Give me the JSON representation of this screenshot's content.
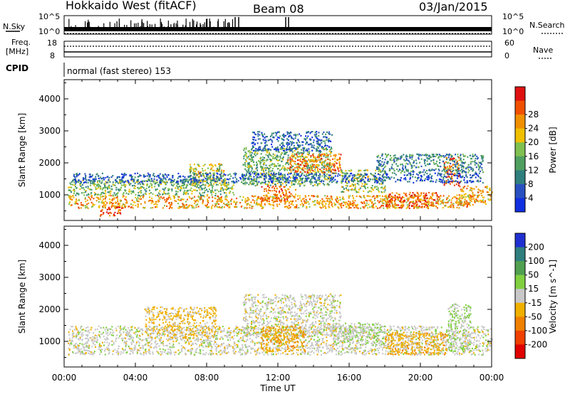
{
  "header": {
    "title": "Hokkaido West (fitACF)",
    "beam": "Beam 08",
    "date": "03/Jan/2015"
  },
  "top_panels": {
    "nsky_label": "N.Sky",
    "nsky_ticks": [
      "10^5",
      "10^0"
    ],
    "nsearch_label": "N.Search",
    "nsearch_ticks": [
      "10^5",
      "10^0"
    ],
    "freq_label_1": "Freq.",
    "freq_label_2": "[MHz]",
    "freq_ticks": [
      "18",
      "8"
    ],
    "nave_label": "Nave",
    "nave_ticks": [
      "60",
      "0"
    ],
    "cpid_label": "CPID",
    "cpid_text": "normal (fast stereo) 153"
  },
  "colors": {
    "power_scale": [
      "#1030e0",
      "#2850c0",
      "#2f7f7f",
      "#4fa060",
      "#80c050",
      "#f0c000",
      "#f09000",
      "#f05000",
      "#e01010"
    ],
    "velocity_scale": [
      "#2030d0",
      "#2f7f7f",
      "#50a050",
      "#80d040",
      "#c8c8c8",
      "#f0b000",
      "#f08000",
      "#f04000",
      "#e00000"
    ]
  },
  "chart_data": [
    {
      "type": "heatmap",
      "title": "",
      "xlabel": "Time UT",
      "ylabel": "Slant Range [km]",
      "x_ticks": [
        "00:00",
        "04:00",
        "08:00",
        "12:00",
        "16:00",
        "20:00",
        "00:00"
      ],
      "y_ticks": [
        1000,
        2000,
        3000,
        4000
      ],
      "ylim": [
        200,
        4600
      ],
      "colorbar_label": "Power [dB]",
      "colorbar_ticks": [
        "4",
        "8",
        "12",
        "16",
        "20",
        "24",
        "28"
      ],
      "bands": [
        {
          "t0": 0.2,
          "t1": 22.8,
          "r0": 600,
          "r1": 1000,
          "value": 22
        },
        {
          "t0": 0.2,
          "t1": 9.5,
          "r0": 1000,
          "r1": 1500,
          "value": 14
        },
        {
          "t0": 2.0,
          "t1": 3.2,
          "r0": 350,
          "r1": 650,
          "value": 28
        },
        {
          "t0": 7.0,
          "t1": 9.0,
          "r0": 1300,
          "r1": 2000,
          "value": 18
        },
        {
          "t0": 10.0,
          "t1": 15.0,
          "r0": 1300,
          "r1": 2500,
          "value": 14
        },
        {
          "t0": 11.0,
          "t1": 13.0,
          "r0": 800,
          "r1": 1300,
          "value": 24
        },
        {
          "t0": 12.5,
          "t1": 15.5,
          "r0": 1700,
          "r1": 2300,
          "value": 24
        },
        {
          "t0": 15.5,
          "t1": 18.0,
          "r0": 1100,
          "r1": 1800,
          "value": 16
        },
        {
          "t0": 18.0,
          "t1": 21.0,
          "r0": 600,
          "r1": 1100,
          "value": 26
        },
        {
          "t0": 21.3,
          "t1": 22.2,
          "r0": 1300,
          "r1": 2200,
          "value": 26
        },
        {
          "t0": 22.0,
          "t1": 24.0,
          "r0": 700,
          "r1": 1300,
          "value": 22
        },
        {
          "t0": 0.5,
          "t1": 23.5,
          "r0": 1400,
          "r1": 1700,
          "value": 6
        },
        {
          "t0": 10.5,
          "t1": 15.0,
          "r0": 2400,
          "r1": 3000,
          "value": 6
        },
        {
          "t0": 17.5,
          "t1": 23.5,
          "r0": 1700,
          "r1": 2300,
          "value": 10
        }
      ]
    },
    {
      "type": "heatmap",
      "title": "",
      "xlabel": "Time UT",
      "ylabel": "Slant Range [km]",
      "x_ticks": [
        "00:00",
        "04:00",
        "08:00",
        "12:00",
        "16:00",
        "20:00",
        "00:00"
      ],
      "y_ticks": [
        1000,
        2000,
        3000,
        4000
      ],
      "ylim": [
        200,
        4600
      ],
      "colorbar_label": "Velocity [m s^-1]",
      "colorbar_ticks": [
        "200",
        "100",
        "50",
        "15",
        "-15",
        "-50",
        "-100",
        "-200"
      ],
      "bands": [
        {
          "t0": 0.2,
          "t1": 24.0,
          "r0": 600,
          "r1": 1500,
          "value": 0
        },
        {
          "t0": 4.5,
          "t1": 8.5,
          "r0": 1100,
          "r1": 2100,
          "value": -40
        },
        {
          "t0": 10.0,
          "t1": 15.5,
          "r0": 1200,
          "r1": 2500,
          "value": 0
        },
        {
          "t0": 11.0,
          "t1": 13.5,
          "r0": 700,
          "r1": 1500,
          "value": -70
        },
        {
          "t0": 18.0,
          "t1": 21.5,
          "r0": 600,
          "r1": 1300,
          "value": -60
        },
        {
          "t0": 21.5,
          "t1": 22.8,
          "r0": 700,
          "r1": 2200,
          "value": 30
        },
        {
          "t0": 15.0,
          "t1": 18.0,
          "r0": 900,
          "r1": 1600,
          "value": 20
        }
      ]
    }
  ]
}
